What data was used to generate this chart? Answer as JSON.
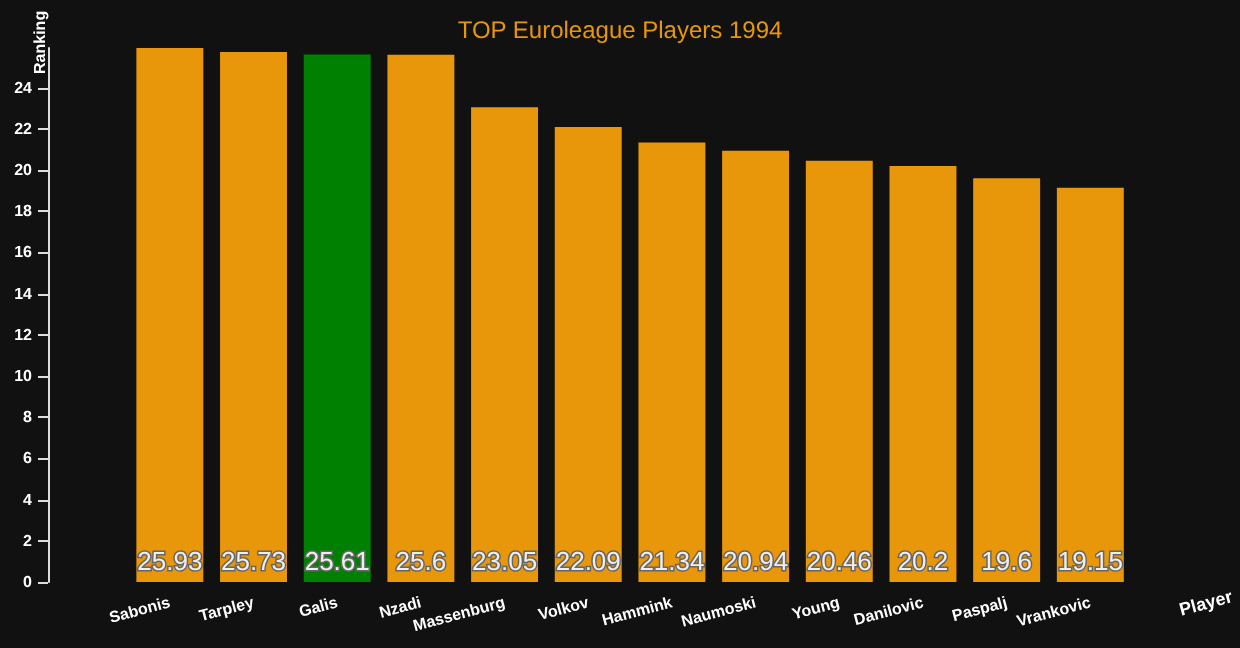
{
  "chart_data": {
    "type": "bar",
    "title": "TOP Euroleague Players 1994",
    "xlabel": "Player",
    "ylabel": "Ranking",
    "categories": [
      "Sabonis",
      "Tarpley",
      "Galis",
      "Nzadi",
      "Massenburg",
      "Volkov",
      "Hammink",
      "Naumoski",
      "Young",
      "Danilovic",
      "Paspalj",
      "Vrankovic"
    ],
    "values": [
      25.93,
      25.73,
      25.61,
      25.6,
      23.05,
      22.09,
      21.34,
      20.94,
      20.46,
      20.2,
      19.6,
      19.15
    ],
    "colors": [
      "#e8960a",
      "#e8960a",
      "#008000",
      "#e8960a",
      "#e8960a",
      "#e8960a",
      "#e8960a",
      "#e8960a",
      "#e8960a",
      "#e8960a",
      "#e8960a",
      "#e8960a"
    ],
    "ylim": [
      0,
      25.93
    ],
    "yticks": [
      0,
      2,
      4,
      6,
      8,
      10,
      12,
      14,
      16,
      18,
      20,
      22,
      24
    ],
    "data_labels": true,
    "grid": false
  }
}
